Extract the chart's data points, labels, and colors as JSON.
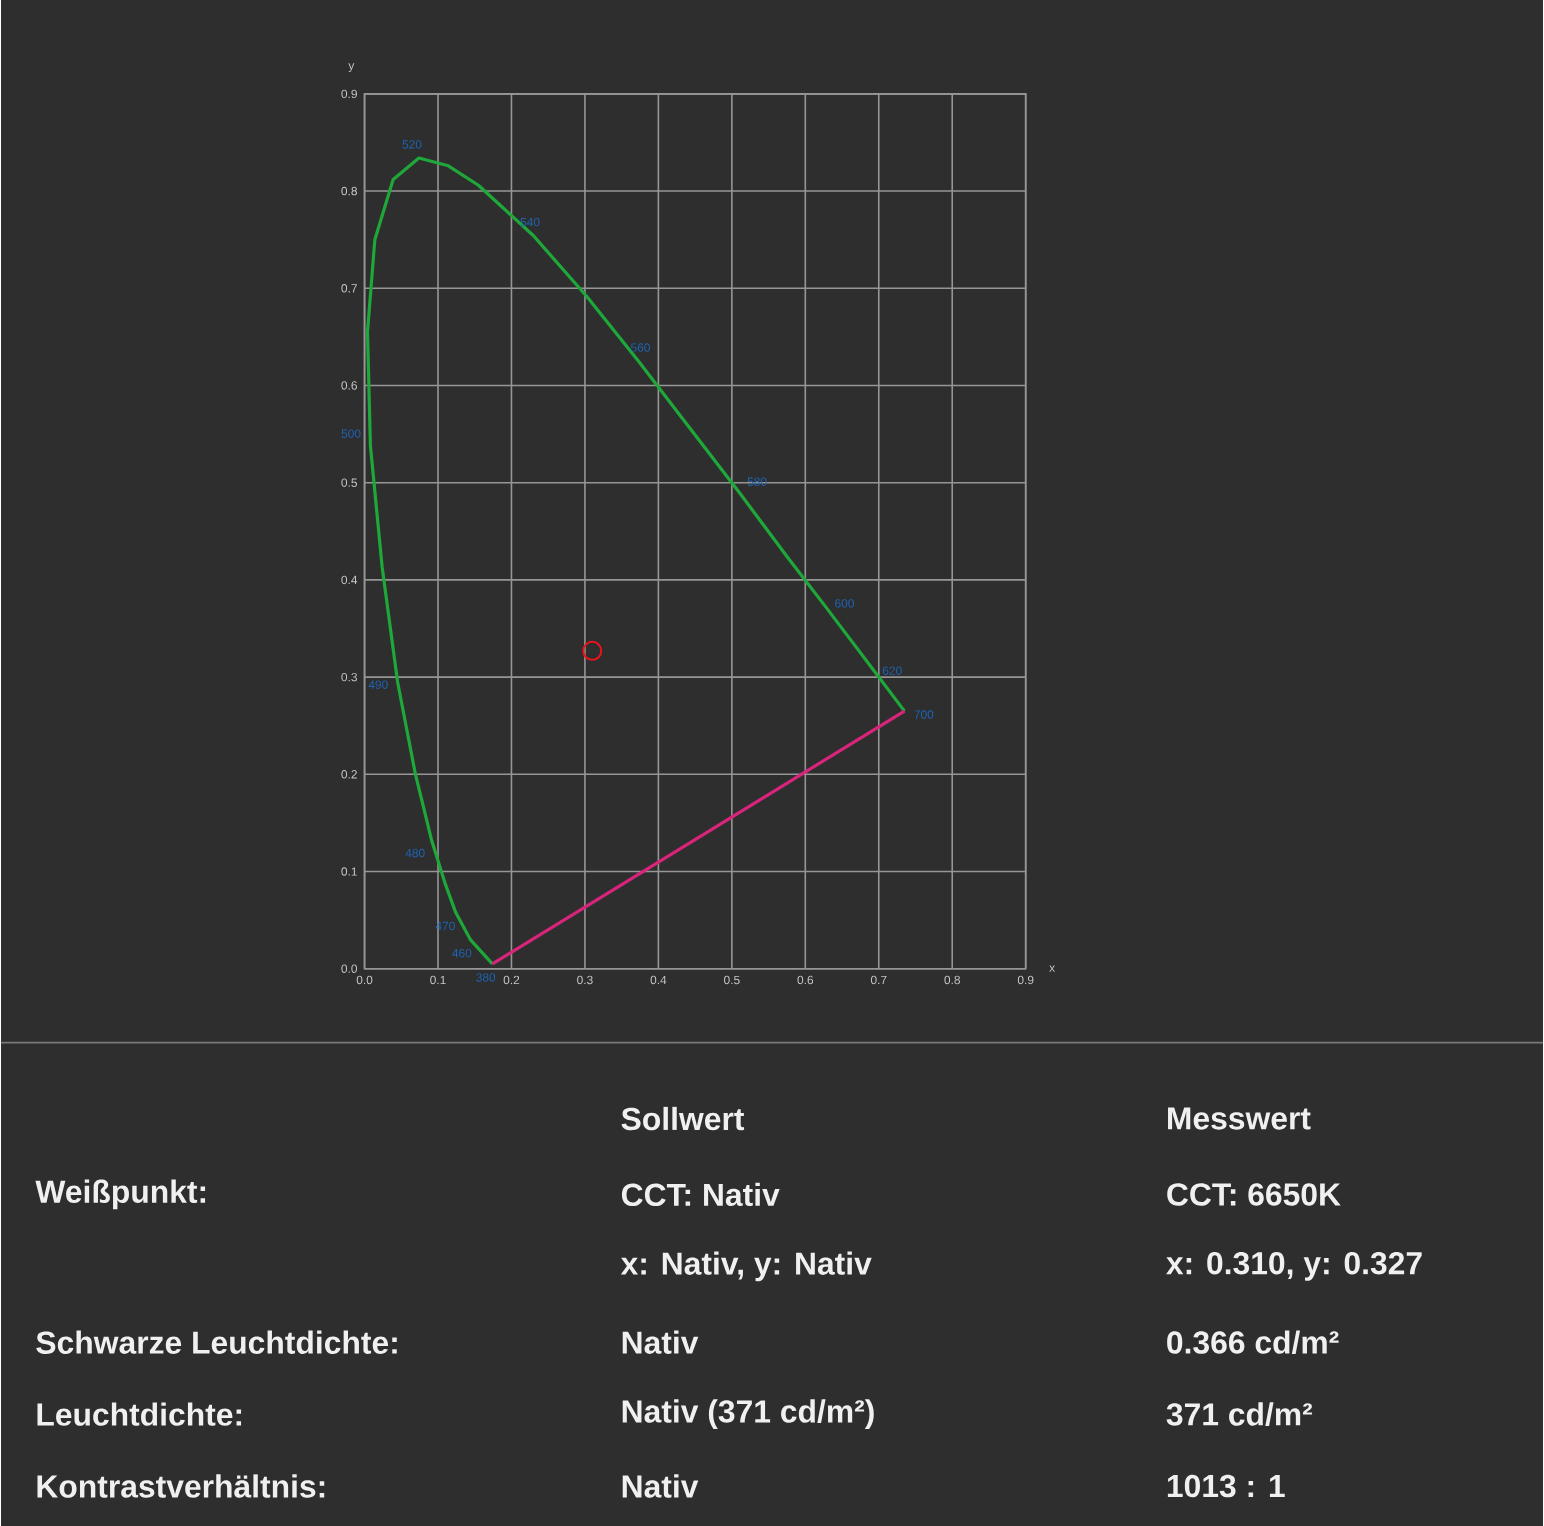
{
  "chart_data": {
    "type": "scatter",
    "xlabel": "x",
    "ylabel": "y",
    "xlim": [
      0,
      0.9
    ],
    "ylim": [
      0,
      0.9
    ],
    "xticks": [
      {
        "value": 0,
        "label": "0.0"
      },
      0.1,
      0.2,
      0.3,
      0.4,
      0.5,
      0.6,
      0.7,
      0.8,
      0.9
    ],
    "yticks": [
      {
        "value": 0,
        "label": "0.0"
      },
      0.1,
      0.2,
      0.3,
      0.4,
      0.5,
      0.6,
      0.7,
      0.8,
      0.9
    ],
    "grid": true,
    "series": [
      {
        "type": "line",
        "marker": "none",
        "color": "#1fa83a",
        "x": [
          0.174,
          0.144,
          0.124,
          0.11,
          0.091,
          0.069,
          0.045,
          0.024,
          0.008,
          0.004,
          0.014,
          0.039,
          0.074,
          0.114,
          0.155,
          0.23,
          0.302,
          0.373,
          0.444,
          0.513,
          0.575,
          0.627,
          0.692,
          0.735
        ],
        "values": [
          0.005,
          0.03,
          0.058,
          0.087,
          0.133,
          0.201,
          0.295,
          0.413,
          0.538,
          0.655,
          0.75,
          0.812,
          0.834,
          0.826,
          0.806,
          0.754,
          0.692,
          0.625,
          0.555,
          0.487,
          0.424,
          0.373,
          0.308,
          0.265
        ]
      },
      {
        "type": "line",
        "marker": "none",
        "color": "#d8247a",
        "x": [
          0.735,
          0.174
        ],
        "values": [
          0.265,
          0.005
        ]
      },
      {
        "marker": "circle",
        "color": "#e8141e",
        "x": [
          0.31
        ],
        "values": [
          0.327
        ]
      }
    ],
    "annotations": [
      {
        "text": "380",
        "x": 0.174,
        "y": 0.005
      },
      {
        "text": "460",
        "x": 0.144,
        "y": 0.03
      },
      {
        "text": "470",
        "x": 0.124,
        "y": 0.058
      },
      {
        "text": "480",
        "x": 0.091,
        "y": 0.133
      },
      {
        "text": "490",
        "x": 0.045,
        "y": 0.295
      },
      {
        "text": "500",
        "x": 0.008,
        "y": 0.538
      },
      {
        "text": "520",
        "x": 0.074,
        "y": 0.834
      },
      {
        "text": "540",
        "x": 0.23,
        "y": 0.754
      },
      {
        "text": "560",
        "x": 0.373,
        "y": 0.625
      },
      {
        "text": "580",
        "x": 0.513,
        "y": 0.487
      },
      {
        "text": "600",
        "x": 0.627,
        "y": 0.373
      },
      {
        "text": "620",
        "x": 0.692,
        "y": 0.308
      },
      {
        "text": "700",
        "x": 0.735,
        "y": 0.265
      },
      "Sollwert",
      "Messwert",
      "Weißpunkt:",
      "CCT: Nativ",
      "CCT: 6650K",
      "x: Nativ, y: Nativ",
      "x: 0.310, y: 0.327",
      "Schwarze Leuchtdichte:",
      "Nativ",
      "0.366 cd/m²",
      "Leuchtdichte:",
      "Nativ (371 cd/m²)",
      "371 cd/m²",
      "Kontrastverhältnis:",
      "Nativ",
      "1013 : 1"
    ]
  }
}
